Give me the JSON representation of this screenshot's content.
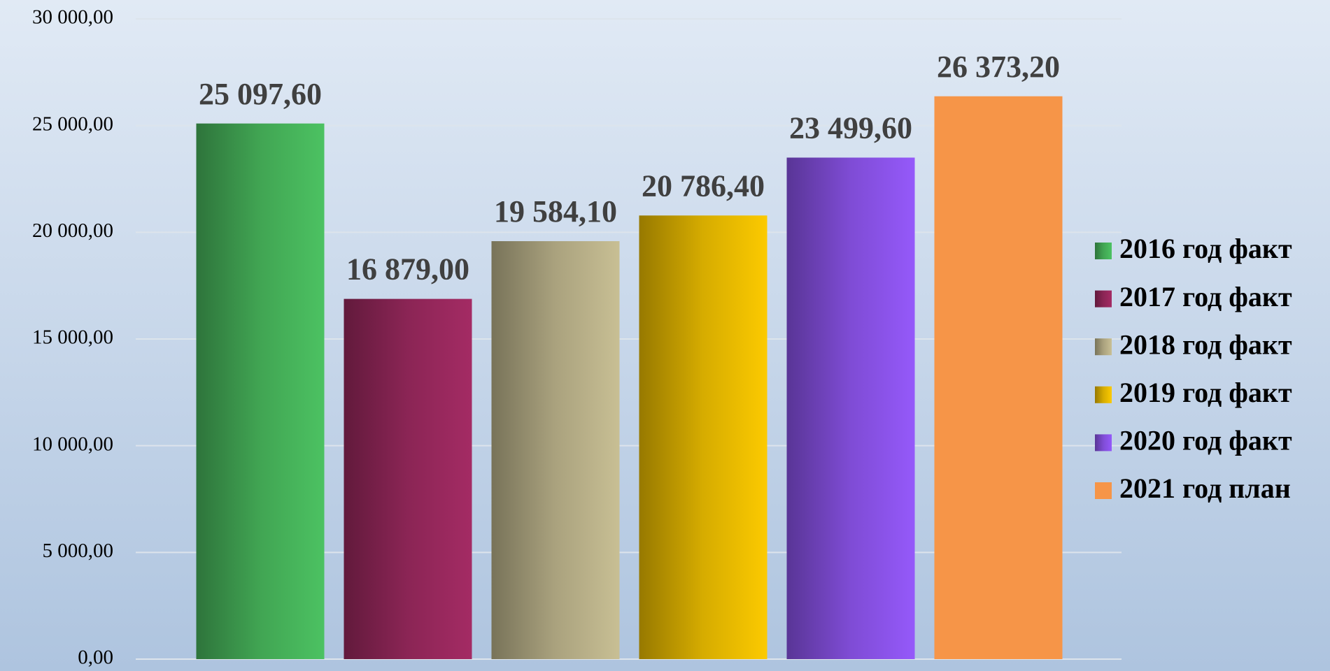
{
  "chart_data": {
    "type": "bar",
    "series": [
      {
        "name": "2016 год факт",
        "color": "#4cc262",
        "gradient": true,
        "values": [
          25097.6
        ],
        "value_labels": [
          "25 097,60"
        ]
      },
      {
        "name": "2017 год факт",
        "color": "#a42b64",
        "gradient": true,
        "values": [
          16879.0
        ],
        "value_labels": [
          "16 879,00"
        ]
      },
      {
        "name": "2018 год факт",
        "color": "#c8bf94",
        "gradient": true,
        "values": [
          19584.1
        ],
        "value_labels": [
          "19 584,10"
        ]
      },
      {
        "name": "2019 год факт",
        "color": "#fcca00",
        "gradient": true,
        "values": [
          20786.4
        ],
        "value_labels": [
          "20 786,40"
        ]
      },
      {
        "name": "2020 год факт",
        "color": "#9559fa",
        "gradient": true,
        "values": [
          23499.6
        ],
        "value_labels": [
          "23 499,60"
        ]
      },
      {
        "name": "2021 год план",
        "color": "#f69548",
        "gradient": false,
        "values": [
          26373.2
        ],
        "value_labels": [
          "26 373,20"
        ]
      }
    ],
    "ylim": [
      0,
      30000
    ],
    "yticks": [
      {
        "value": 0,
        "label": "0,00"
      },
      {
        "value": 5000,
        "label": "5 000,00"
      },
      {
        "value": 10000,
        "label": "10 000,00"
      },
      {
        "value": 15000,
        "label": "15 000,00"
      },
      {
        "value": 20000,
        "label": "20 000,00"
      },
      {
        "value": 25000,
        "label": "25 000,00"
      },
      {
        "value": 30000,
        "label": "30 000,00"
      }
    ],
    "grid": true,
    "legend": "right"
  }
}
